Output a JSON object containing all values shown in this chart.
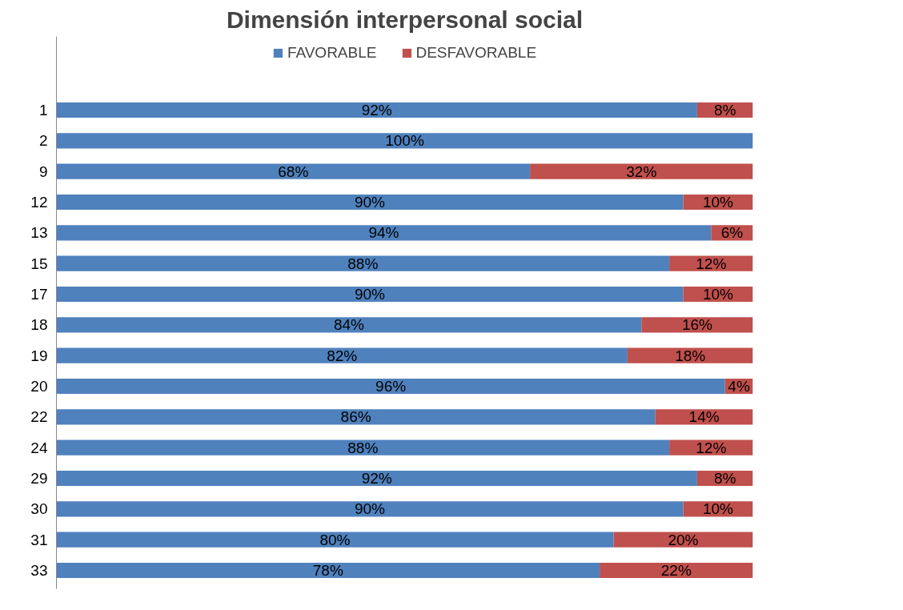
{
  "chart_data": {
    "type": "bar",
    "orientation": "horizontal",
    "stacked": true,
    "title": "Dimensión interpersonal social",
    "categories": [
      "1",
      "2",
      "9",
      "12",
      "13",
      "15",
      "17",
      "18",
      "19",
      "20",
      "22",
      "24",
      "29",
      "30",
      "31",
      "33"
    ],
    "series": [
      {
        "name": "FAVORABLE",
        "color": "#4f81bd",
        "values": [
          92,
          100,
          68,
          90,
          94,
          88,
          90,
          84,
          82,
          96,
          86,
          88,
          92,
          90,
          80,
          78
        ],
        "value_labels": [
          "92%",
          "100%",
          "68%",
          "90%",
          "94%",
          "88%",
          "90%",
          "84%",
          "82%",
          "96%",
          "86%",
          "88%",
          "92%",
          "90%",
          "80%",
          "78%"
        ]
      },
      {
        "name": "DESFAVORABLE",
        "color": "#c0504d",
        "values": [
          8,
          0,
          32,
          10,
          6,
          12,
          10,
          16,
          18,
          4,
          14,
          12,
          8,
          10,
          20,
          22
        ],
        "value_labels": [
          "8%",
          null,
          "32%",
          "10%",
          "6%",
          "12%",
          "10%",
          "16%",
          "18%",
          "4%",
          "14%",
          "12%",
          "8%",
          "10%",
          "20%",
          "22%"
        ]
      }
    ],
    "legend": "top",
    "tick_labels": "y",
    "grid": false
  }
}
